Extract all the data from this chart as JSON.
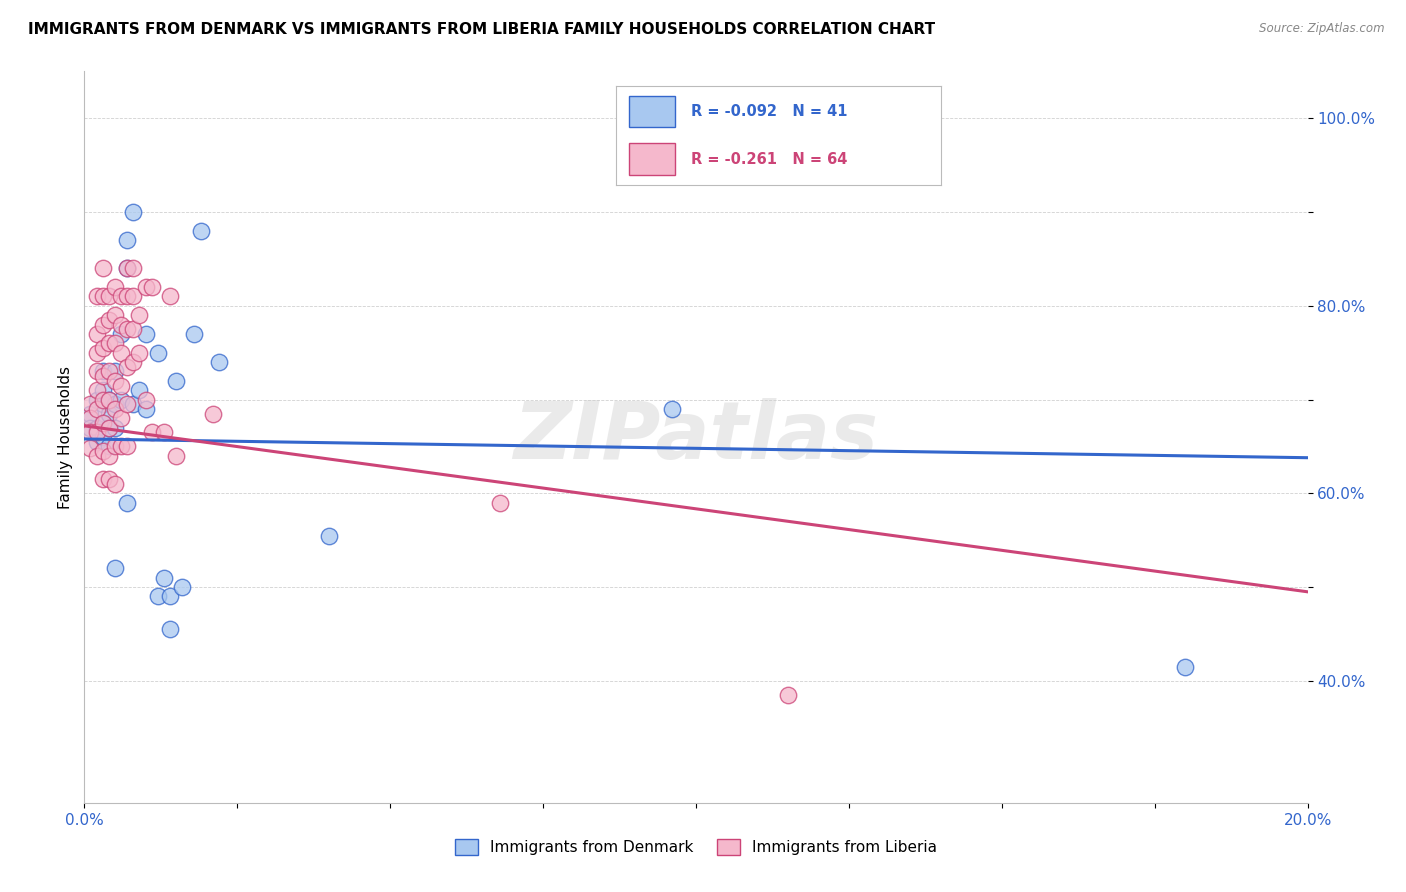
{
  "title": "IMMIGRANTS FROM DENMARK VS IMMIGRANTS FROM LIBERIA FAMILY HOUSEHOLDS CORRELATION CHART",
  "source": "Source: ZipAtlas.com",
  "ylabel": "Family Households",
  "r_denmark": -0.092,
  "n_denmark": 41,
  "r_liberia": -0.261,
  "n_liberia": 64,
  "color_denmark": "#A8C8F0",
  "color_liberia": "#F5B8CC",
  "line_color_denmark": "#3366CC",
  "line_color_liberia": "#CC4477",
  "watermark": "ZIPatlas",
  "xlim": [
    0.0,
    0.2
  ],
  "ylim": [
    0.27,
    1.05
  ],
  "denmark_scatter": [
    [
      0.001,
      0.685
    ],
    [
      0.001,
      0.67
    ],
    [
      0.002,
      0.7
    ],
    [
      0.002,
      0.67
    ],
    [
      0.002,
      0.655
    ],
    [
      0.003,
      0.73
    ],
    [
      0.003,
      0.71
    ],
    [
      0.003,
      0.695
    ],
    [
      0.003,
      0.675
    ],
    [
      0.003,
      0.66
    ],
    [
      0.004,
      0.7
    ],
    [
      0.004,
      0.685
    ],
    [
      0.004,
      0.67
    ],
    [
      0.004,
      0.65
    ],
    [
      0.005,
      0.73
    ],
    [
      0.005,
      0.695
    ],
    [
      0.005,
      0.67
    ],
    [
      0.005,
      0.52
    ],
    [
      0.006,
      0.77
    ],
    [
      0.006,
      0.7
    ],
    [
      0.007,
      0.84
    ],
    [
      0.007,
      0.87
    ],
    [
      0.007,
      0.59
    ],
    [
      0.008,
      0.9
    ],
    [
      0.008,
      0.695
    ],
    [
      0.009,
      0.71
    ],
    [
      0.01,
      0.77
    ],
    [
      0.01,
      0.69
    ],
    [
      0.012,
      0.75
    ],
    [
      0.012,
      0.49
    ],
    [
      0.013,
      0.51
    ],
    [
      0.014,
      0.455
    ],
    [
      0.014,
      0.49
    ],
    [
      0.015,
      0.72
    ],
    [
      0.016,
      0.5
    ],
    [
      0.018,
      0.77
    ],
    [
      0.019,
      0.88
    ],
    [
      0.022,
      0.74
    ],
    [
      0.04,
      0.555
    ],
    [
      0.096,
      0.69
    ],
    [
      0.18,
      0.415
    ]
  ],
  "liberia_scatter": [
    [
      0.001,
      0.695
    ],
    [
      0.001,
      0.68
    ],
    [
      0.001,
      0.665
    ],
    [
      0.001,
      0.648
    ],
    [
      0.002,
      0.81
    ],
    [
      0.002,
      0.77
    ],
    [
      0.002,
      0.75
    ],
    [
      0.002,
      0.73
    ],
    [
      0.002,
      0.71
    ],
    [
      0.002,
      0.69
    ],
    [
      0.002,
      0.665
    ],
    [
      0.002,
      0.64
    ],
    [
      0.003,
      0.84
    ],
    [
      0.003,
      0.81
    ],
    [
      0.003,
      0.78
    ],
    [
      0.003,
      0.755
    ],
    [
      0.003,
      0.725
    ],
    [
      0.003,
      0.7
    ],
    [
      0.003,
      0.675
    ],
    [
      0.003,
      0.645
    ],
    [
      0.003,
      0.615
    ],
    [
      0.004,
      0.81
    ],
    [
      0.004,
      0.785
    ],
    [
      0.004,
      0.76
    ],
    [
      0.004,
      0.73
    ],
    [
      0.004,
      0.7
    ],
    [
      0.004,
      0.67
    ],
    [
      0.004,
      0.64
    ],
    [
      0.004,
      0.615
    ],
    [
      0.005,
      0.82
    ],
    [
      0.005,
      0.79
    ],
    [
      0.005,
      0.76
    ],
    [
      0.005,
      0.72
    ],
    [
      0.005,
      0.69
    ],
    [
      0.005,
      0.65
    ],
    [
      0.005,
      0.61
    ],
    [
      0.006,
      0.81
    ],
    [
      0.006,
      0.78
    ],
    [
      0.006,
      0.75
    ],
    [
      0.006,
      0.715
    ],
    [
      0.006,
      0.68
    ],
    [
      0.006,
      0.65
    ],
    [
      0.007,
      0.84
    ],
    [
      0.007,
      0.81
    ],
    [
      0.007,
      0.775
    ],
    [
      0.007,
      0.735
    ],
    [
      0.007,
      0.695
    ],
    [
      0.007,
      0.65
    ],
    [
      0.008,
      0.84
    ],
    [
      0.008,
      0.81
    ],
    [
      0.008,
      0.775
    ],
    [
      0.008,
      0.74
    ],
    [
      0.009,
      0.79
    ],
    [
      0.009,
      0.75
    ],
    [
      0.01,
      0.82
    ],
    [
      0.01,
      0.7
    ],
    [
      0.011,
      0.82
    ],
    [
      0.011,
      0.665
    ],
    [
      0.013,
      0.665
    ],
    [
      0.014,
      0.81
    ],
    [
      0.015,
      0.64
    ],
    [
      0.021,
      0.685
    ],
    [
      0.068,
      0.59
    ],
    [
      0.115,
      0.385
    ]
  ],
  "line_denmark": [
    0.0,
    0.2,
    0.658,
    0.638
  ],
  "line_liberia": [
    0.0,
    0.2,
    0.672,
    0.495
  ]
}
